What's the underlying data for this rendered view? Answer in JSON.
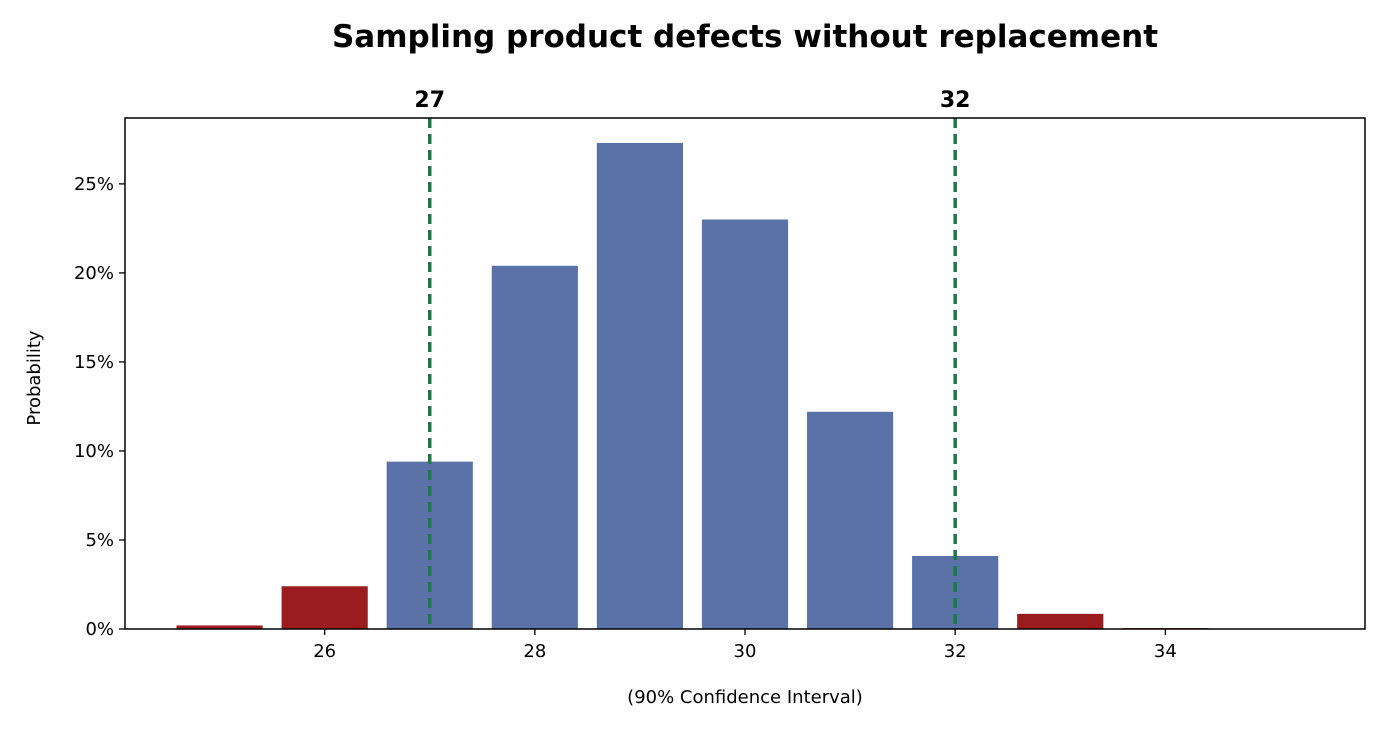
{
  "chart_data": {
    "type": "bar",
    "title": "Sampling product defects without replacement",
    "xlabel": "(90% Confidence Interval)",
    "ylabel": "Probability",
    "x": [
      25,
      26,
      27,
      28,
      29,
      30,
      31,
      32,
      33,
      34,
      35
    ],
    "values": [
      0.2,
      2.4,
      9.4,
      20.4,
      27.3,
      23.0,
      12.2,
      4.1,
      0.85,
      0.05,
      0.0
    ],
    "in_interval": [
      false,
      false,
      true,
      true,
      true,
      true,
      true,
      true,
      false,
      false,
      false
    ],
    "xlim": [
      24.1,
      35.9
    ],
    "ylim": [
      0,
      28.7
    ],
    "xticks": [
      26,
      28,
      30,
      32,
      34
    ],
    "yticks": [
      0,
      5,
      10,
      15,
      20,
      25
    ],
    "ytick_suffix": "%",
    "interval": {
      "lower": 27,
      "upper": 32,
      "lower_label": "27",
      "upper_label": "32"
    },
    "colors": {
      "inside": "#5b72a9",
      "outside": "#9b1c1f",
      "interval_line": "#1a7a43",
      "axis": "#000000"
    }
  }
}
